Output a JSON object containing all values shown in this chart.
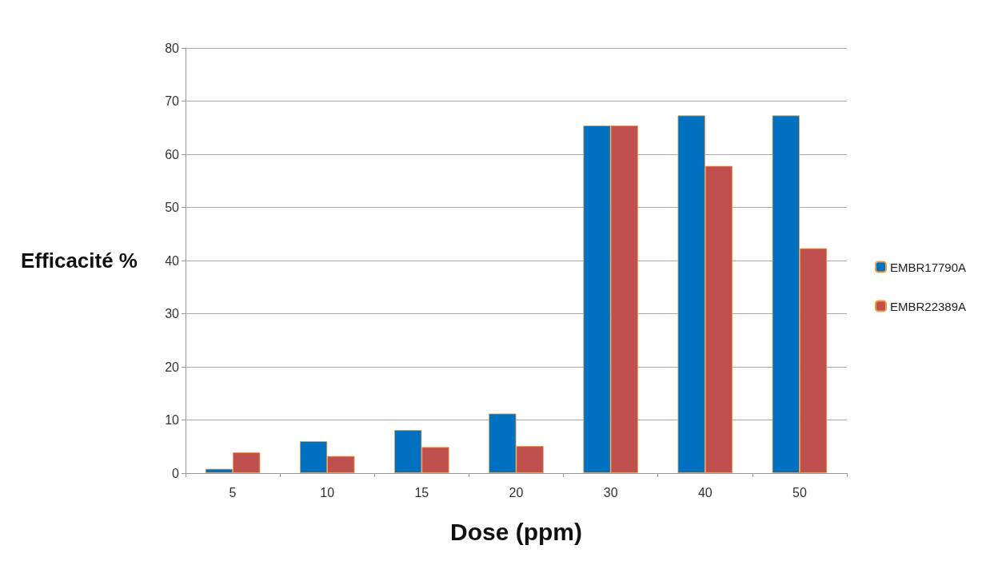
{
  "chart_data": {
    "type": "bar",
    "xlabel": "Dose (ppm)",
    "ylabel": "Efficacité %",
    "categories": [
      "5",
      "10",
      "15",
      "20",
      "30",
      "40",
      "50"
    ],
    "series": [
      {
        "name": "EMBR17790A",
        "color": "#0070c0",
        "values": [
          0.8,
          6.0,
          8.1,
          11.2,
          65.4,
          67.3,
          67.3
        ]
      },
      {
        "name": "EMBR22389A",
        "color": "#c0504d",
        "values": [
          3.9,
          3.2,
          4.9,
          5.1,
          65.4,
          57.8,
          42.3
        ]
      }
    ],
    "ylim": [
      0,
      80
    ],
    "yticks": [
      0,
      10,
      20,
      30,
      40,
      50,
      60,
      70,
      80
    ],
    "grid": "y",
    "legend": "right"
  }
}
